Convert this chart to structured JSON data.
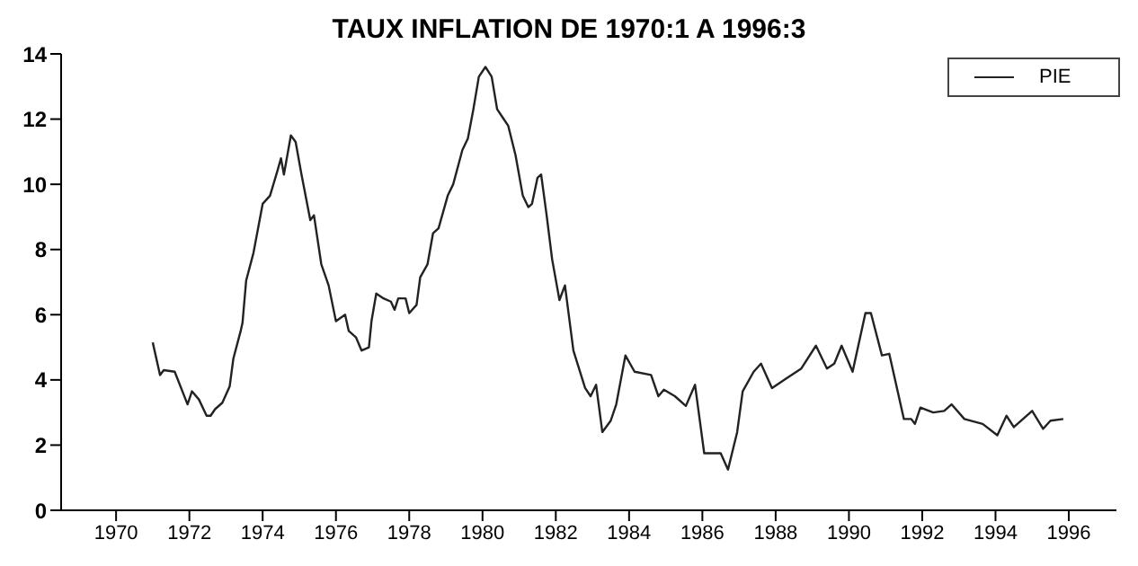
{
  "chart_data": {
    "type": "line",
    "title": "TAUX INFLATION DE 1970:1 A 1996:3",
    "x": [
      1971.0,
      1971.2,
      1971.3,
      1971.6,
      1971.95,
      1972.07,
      1972.26,
      1972.47,
      1972.58,
      1972.7,
      1972.9,
      1973.1,
      1973.2,
      1973.4,
      1973.45,
      1973.55,
      1973.75,
      1974.0,
      1974.2,
      1974.4,
      1974.5,
      1974.58,
      1974.77,
      1974.9,
      1975.06,
      1975.3,
      1975.4,
      1975.6,
      1975.8,
      1976.0,
      1976.25,
      1976.35,
      1976.55,
      1976.7,
      1976.9,
      1976.97,
      1977.1,
      1977.3,
      1977.5,
      1977.6,
      1977.7,
      1977.9,
      1978.0,
      1978.2,
      1978.3,
      1978.5,
      1978.65,
      1978.8,
      1979.05,
      1979.2,
      1979.45,
      1979.6,
      1979.75,
      1979.9,
      1980.08,
      1980.25,
      1980.4,
      1980.55,
      1980.7,
      1980.9,
      1981.1,
      1981.25,
      1981.35,
      1981.5,
      1981.6,
      1981.75,
      1981.9,
      1982.1,
      1982.25,
      1982.48,
      1982.8,
      1982.95,
      1983.1,
      1983.27,
      1983.5,
      1983.65,
      1983.9,
      1984.15,
      1984.6,
      1984.8,
      1984.95,
      1985.25,
      1985.55,
      1985.8,
      1986.05,
      1986.3,
      1986.5,
      1986.7,
      1986.95,
      1987.1,
      1987.4,
      1987.6,
      1987.9,
      1988.3,
      1988.7,
      1989.1,
      1989.4,
      1989.6,
      1989.8,
      1990.1,
      1990.45,
      1990.6,
      1990.9,
      1991.1,
      1991.5,
      1991.7,
      1991.8,
      1991.95,
      1992.3,
      1992.6,
      1992.8,
      1993.15,
      1993.65,
      1994.05,
      1994.3,
      1994.5,
      1995.0,
      1995.3,
      1995.5,
      1995.85
    ],
    "series": [
      {
        "name": "PIE",
        "color": "#222222",
        "values": [
          5.15,
          4.15,
          4.3,
          4.25,
          3.25,
          3.65,
          3.4,
          2.9,
          2.9,
          3.1,
          3.3,
          3.8,
          4.65,
          5.5,
          5.75,
          7.05,
          7.9,
          9.4,
          9.65,
          10.4,
          10.8,
          10.3,
          11.5,
          11.3,
          10.3,
          8.9,
          9.05,
          7.55,
          6.9,
          5.8,
          6.0,
          5.5,
          5.3,
          4.9,
          5.0,
          5.8,
          6.65,
          6.5,
          6.4,
          6.15,
          6.5,
          6.5,
          6.05,
          6.3,
          7.15,
          7.55,
          8.5,
          8.65,
          9.65,
          10.0,
          11.05,
          11.4,
          12.3,
          13.3,
          13.6,
          13.3,
          12.3,
          12.05,
          11.8,
          10.9,
          9.65,
          9.3,
          9.4,
          10.2,
          10.3,
          9.05,
          7.7,
          6.45,
          6.9,
          4.9,
          3.75,
          3.5,
          3.85,
          2.4,
          2.75,
          3.25,
          4.75,
          4.25,
          4.15,
          3.5,
          3.7,
          3.5,
          3.2,
          3.85,
          1.75,
          1.75,
          1.75,
          1.25,
          2.4,
          3.65,
          4.25,
          4.5,
          3.75,
          4.05,
          4.35,
          5.05,
          4.35,
          4.5,
          5.05,
          4.25,
          6.05,
          6.05,
          4.75,
          4.8,
          2.8,
          2.8,
          2.65,
          3.15,
          3.0,
          3.05,
          3.25,
          2.8,
          2.65,
          2.3,
          2.9,
          2.55,
          3.05,
          2.5,
          2.75,
          2.8
        ]
      }
    ],
    "xlim": [
      1968.5,
      1997.3
    ],
    "xticks": [
      1970,
      1972,
      1974,
      1976,
      1978,
      1980,
      1982,
      1984,
      1986,
      1988,
      1990,
      1992,
      1994,
      1996
    ],
    "ylim": [
      0,
      14
    ],
    "yticks": [
      0,
      2,
      4,
      6,
      8,
      10,
      12,
      14
    ],
    "legend": "top right",
    "grid": false,
    "marker": "none",
    "line_style": "solid"
  }
}
